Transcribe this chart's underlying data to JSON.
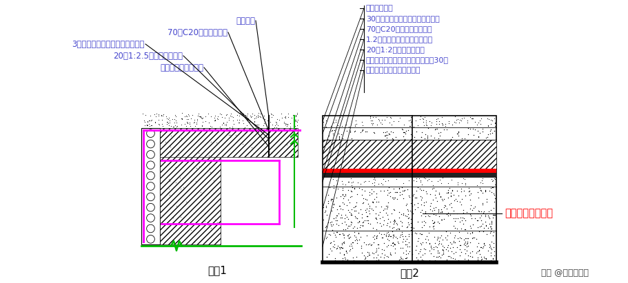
{
  "bg_color": "#ffffff",
  "left_labels": [
    "素土夯实",
    "70厚C20细石砼保护层",
    "3厚自粘聚合物改性沥青防水卷材",
    "20厚1:2.5水泥砂浆找平层",
    "钢筋砼自防水外顶板"
  ],
  "right_labels": [
    "素土碾压密实",
    "30厚粗砂垫层，聚脂无纺布滤水层",
    "70厚C20钢筋混凝土保护层",
    "1.2厚合成高分子防水卷材两道",
    "20厚1:2水泥砂浆找平层",
    "轻集料混凝土垫层兼找坡，最薄处30厚",
    "钢筋混凝土顶板（自防水）"
  ],
  "label1": "做法1",
  "label2": "做法2",
  "watermark": "头条 @地产微分享",
  "annotation": "带找坡层、滤水层",
  "magenta": "#ff00ff",
  "green": "#00bb00",
  "red": "#ff0000",
  "blue_text": "#4444cc",
  "red_text": "#ff0000",
  "black": "#000000"
}
